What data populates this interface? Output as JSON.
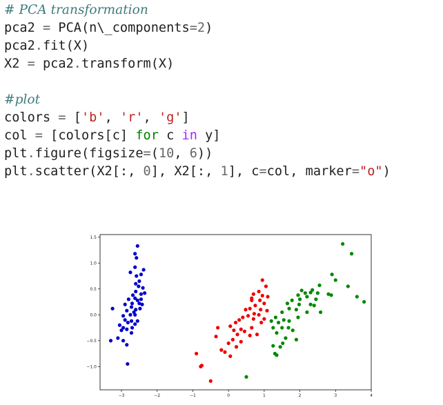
{
  "code": {
    "line1": "# PCA transformation",
    "line2_a": "pca2 ",
    "line2_op": "=",
    "line2_b": " PCA(n\\_components",
    "line2_op2": "=",
    "line2_num": "2",
    "line2_c": ")",
    "line3_a": "pca2",
    "line3_op": ".",
    "line3_b": "fit(X)",
    "line4_a": "X2 ",
    "line4_op": "=",
    "line4_b": " pca2",
    "line4_op2": ".",
    "line4_c": "transform(X)",
    "line6": "#plot",
    "line7_a": "colors ",
    "line7_op": "=",
    "line7_b": " [",
    "line7_s1": "'b'",
    "line7_c1": ", ",
    "line7_s2": "'r'",
    "line7_c2": ", ",
    "line7_s3": "'g'",
    "line7_d": "]",
    "line8_a": "col ",
    "line8_op": "=",
    "line8_b": " [colors[c] ",
    "line8_kw1": "for",
    "line8_c": " c ",
    "line8_kw2": "in",
    "line8_d": " y]",
    "line9_a": "plt",
    "line9_op": ".",
    "line9_b": "figure(figsize",
    "line9_op2": "=",
    "line9_c": "(",
    "line9_n1": "10",
    "line9_d": ", ",
    "line9_n2": "6",
    "line9_e": "))",
    "line10_a": "plt",
    "line10_op": ".",
    "line10_b": "scatter(X2[:, ",
    "line10_n1": "0",
    "line10_c": "], X2[:, ",
    "line10_n2": "1",
    "line10_d": "], c",
    "line10_op2": "=",
    "line10_e": "col, marker",
    "line10_op3": "=",
    "line10_s": "\"o\"",
    "line10_f": ")"
  },
  "chart_data": {
    "type": "scatter",
    "xlim": [
      -3.6,
      4.0
    ],
    "ylim": [
      -1.45,
      1.55
    ],
    "x_ticks": [
      -3,
      -2,
      -1,
      0,
      1,
      2,
      3,
      4
    ],
    "x_tick_labels": [
      "−3",
      "−2",
      "−1",
      "0",
      "1",
      "2",
      "3",
      "4"
    ],
    "y_ticks": [
      1.5,
      1.0,
      0.5,
      0.0,
      -0.5,
      -1.0
    ],
    "y_tick_labels": [
      "1.5",
      "1.0",
      "0.5",
      "0.0",
      "−0.5",
      "−1.0"
    ],
    "grid": false,
    "series": [
      {
        "color": "#0000cc",
        "points": [
          [
            -2.55,
            1.33
          ],
          [
            -2.62,
            1.18
          ],
          [
            -2.38,
            0.87
          ],
          [
            -2.58,
            1.1
          ],
          [
            -2.62,
            0.92
          ],
          [
            -2.75,
            0.82
          ],
          [
            -2.45,
            0.78
          ],
          [
            -2.6,
            0.6
          ],
          [
            -2.52,
            0.55
          ],
          [
            -2.4,
            0.52
          ],
          [
            -2.6,
            0.45
          ],
          [
            -2.68,
            0.38
          ],
          [
            -2.45,
            0.4
          ],
          [
            -2.35,
            0.42
          ],
          [
            -2.8,
            0.3
          ],
          [
            -2.62,
            0.32
          ],
          [
            -2.55,
            0.28
          ],
          [
            -2.5,
            0.22
          ],
          [
            -2.7,
            0.22
          ],
          [
            -2.9,
            0.2
          ],
          [
            -2.42,
            0.2
          ],
          [
            -2.72,
            0.15
          ],
          [
            -2.48,
            0.12
          ],
          [
            -2.6,
            0.1
          ],
          [
            -2.85,
            0.08
          ],
          [
            -3.25,
            0.12
          ],
          [
            -2.75,
            0.0
          ],
          [
            -2.62,
            0.0
          ],
          [
            -2.95,
            -0.02
          ],
          [
            -2.9,
            -0.1
          ],
          [
            -2.72,
            -0.12
          ],
          [
            -2.55,
            -0.12
          ],
          [
            -2.82,
            -0.15
          ],
          [
            -2.62,
            -0.18
          ],
          [
            -3.05,
            -0.2
          ],
          [
            -2.95,
            -0.25
          ],
          [
            -2.7,
            -0.25
          ],
          [
            -2.85,
            -0.28
          ],
          [
            -3.0,
            -0.3
          ],
          [
            -2.72,
            -0.35
          ],
          [
            -3.1,
            -0.45
          ],
          [
            -2.95,
            -0.5
          ],
          [
            -3.3,
            -0.5
          ],
          [
            -2.85,
            -0.58
          ],
          [
            -2.83,
            -0.95
          ],
          [
            -2.5,
            0.65
          ],
          [
            -2.58,
            0.75
          ],
          [
            -2.45,
            0.3
          ],
          [
            -2.65,
            0.05
          ]
        ]
      },
      {
        "color": "#ee0000",
        "points": [
          [
            0.95,
            0.67
          ],
          [
            1.05,
            0.55
          ],
          [
            0.85,
            0.45
          ],
          [
            0.7,
            0.4
          ],
          [
            0.95,
            0.37
          ],
          [
            1.1,
            0.35
          ],
          [
            0.65,
            0.28
          ],
          [
            0.88,
            0.28
          ],
          [
            1.0,
            0.22
          ],
          [
            0.75,
            0.18
          ],
          [
            0.6,
            0.12
          ],
          [
            0.48,
            0.1
          ],
          [
            0.9,
            0.1
          ],
          [
            1.08,
            0.08
          ],
          [
            0.72,
            0.02
          ],
          [
            0.85,
            0.0
          ],
          [
            0.55,
            -0.02
          ],
          [
            0.4,
            -0.05
          ],
          [
            0.7,
            -0.08
          ],
          [
            1.0,
            -0.08
          ],
          [
            0.92,
            -0.15
          ],
          [
            0.2,
            -0.15
          ],
          [
            0.05,
            -0.22
          ],
          [
            0.65,
            -0.25
          ],
          [
            0.35,
            -0.28
          ],
          [
            0.15,
            -0.3
          ],
          [
            0.45,
            -0.32
          ],
          [
            0.25,
            -0.38
          ],
          [
            0.6,
            -0.4
          ],
          [
            0.8,
            -0.38
          ],
          [
            -0.3,
            -0.25
          ],
          [
            -0.35,
            -0.42
          ],
          [
            0.12,
            -0.48
          ],
          [
            0.35,
            -0.52
          ],
          [
            0.0,
            -0.55
          ],
          [
            0.22,
            -0.62
          ],
          [
            -0.2,
            -0.68
          ],
          [
            -0.1,
            -0.72
          ],
          [
            0.05,
            -0.8
          ],
          [
            -0.9,
            -0.75
          ],
          [
            -0.75,
            -0.98
          ],
          [
            -0.78,
            -1.0
          ],
          [
            -0.5,
            -1.28
          ],
          [
            0.65,
            0.32
          ],
          [
            0.3,
            -0.1
          ]
        ]
      },
      {
        "color": "#008800",
        "points": [
          [
            3.2,
            1.37
          ],
          [
            3.45,
            1.18
          ],
          [
            2.9,
            0.78
          ],
          [
            3.0,
            0.67
          ],
          [
            2.55,
            0.57
          ],
          [
            3.35,
            0.55
          ],
          [
            2.35,
            0.48
          ],
          [
            2.05,
            0.47
          ],
          [
            2.3,
            0.43
          ],
          [
            2.15,
            0.42
          ],
          [
            2.5,
            0.42
          ],
          [
            1.95,
            0.38
          ],
          [
            2.88,
            0.38
          ],
          [
            2.2,
            0.35
          ],
          [
            3.6,
            0.35
          ],
          [
            2.0,
            0.3
          ],
          [
            1.78,
            0.28
          ],
          [
            2.45,
            0.3
          ],
          [
            3.8,
            0.25
          ],
          [
            1.65,
            0.22
          ],
          [
            1.98,
            0.2
          ],
          [
            2.3,
            0.2
          ],
          [
            2.4,
            0.18
          ],
          [
            1.7,
            0.12
          ],
          [
            1.9,
            0.1
          ],
          [
            2.2,
            0.05
          ],
          [
            1.5,
            0.05
          ],
          [
            1.32,
            -0.05
          ],
          [
            1.55,
            -0.1
          ],
          [
            1.2,
            -0.12
          ],
          [
            1.4,
            -0.15
          ],
          [
            1.25,
            -0.25
          ],
          [
            1.5,
            -0.25
          ],
          [
            1.68,
            -0.25
          ],
          [
            1.8,
            -0.3
          ],
          [
            1.35,
            -0.35
          ],
          [
            1.6,
            -0.45
          ],
          [
            1.9,
            -0.48
          ],
          [
            1.52,
            -0.55
          ],
          [
            1.25,
            -0.6
          ],
          [
            1.45,
            -0.62
          ],
          [
            1.3,
            -0.75
          ],
          [
            1.35,
            -0.78
          ],
          [
            0.5,
            -1.2
          ],
          [
            2.8,
            0.4
          ],
          [
            1.7,
            -0.12
          ],
          [
            2.58,
            0.05
          ],
          [
            1.95,
            -0.05
          ]
        ]
      }
    ]
  }
}
